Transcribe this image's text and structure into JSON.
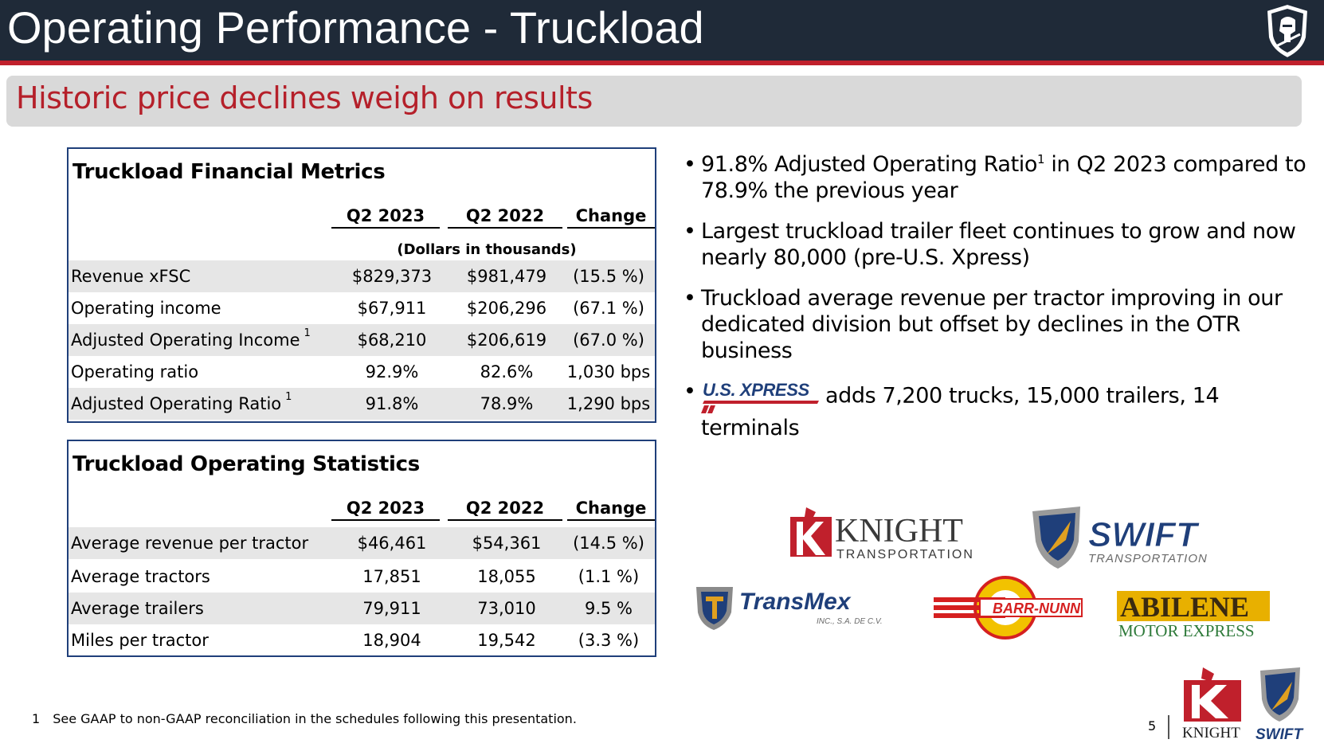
{
  "header": {
    "title": "Operating Performance - Truckload",
    "logo_icon": "knight-helmet-shield-icon"
  },
  "banner": {
    "subtitle": "Historic price declines weigh on results"
  },
  "financial_metrics": {
    "title": "Truckload Financial Metrics",
    "columns": [
      "Q2 2023",
      "Q2 2022",
      "Change"
    ],
    "units": "(Dollars in thousands)",
    "rows": [
      {
        "label": "Revenue xFSC",
        "footnote": "",
        "q2_2023": "$829,373",
        "q2_2022": "$981,479",
        "change": "(15.5 %)"
      },
      {
        "label": "Operating income",
        "footnote": "",
        "q2_2023": "$67,911",
        "q2_2022": "$206,296",
        "change": "(67.1 %)"
      },
      {
        "label": "Adjusted Operating Income",
        "footnote": "1",
        "q2_2023": "$68,210",
        "q2_2022": "$206,619",
        "change": "(67.0 %)"
      },
      {
        "label": "Operating ratio",
        "footnote": "",
        "q2_2023": "92.9%",
        "q2_2022": "82.6%",
        "change": "1,030 bps"
      },
      {
        "label": "Adjusted Operating Ratio",
        "footnote": "1",
        "q2_2023": "91.8%",
        "q2_2022": "78.9%",
        "change": "1,290 bps"
      }
    ]
  },
  "operating_statistics": {
    "title": "Truckload Operating Statistics",
    "columns": [
      "Q2 2023",
      "Q2 2022",
      "Change"
    ],
    "rows": [
      {
        "label": "Average revenue per tractor",
        "q2_2023": "$46,461",
        "q2_2022": "$54,361",
        "change": "(14.5 %)"
      },
      {
        "label": "Average tractors",
        "q2_2023": "17,851",
        "q2_2022": "18,055",
        "change": "(1.1 %)"
      },
      {
        "label": "Average trailers",
        "q2_2023": "79,911",
        "q2_2022": "73,010",
        "change": "9.5 %"
      },
      {
        "label": "Miles per tractor",
        "q2_2023": "18,904",
        "q2_2022": "19,542",
        "change": "(3.3 %)"
      }
    ]
  },
  "bullets": {
    "b1_pre": "91.8% Adjusted Operating Ratio",
    "b1_sup": "1",
    "b1_post": " in Q2 2023 compared to 78.9% the previous year",
    "b2": "Largest truckload trailer fleet continues to grow and now nearly 80,000 (pre-U.S. Xpress)",
    "b3": "Truckload average revenue per tractor improving in our dedicated division but offset by declines in the OTR business",
    "b4": "adds 7,200 trucks, 15,000 trailers, 14 terminals",
    "b4_logo_text": "U.S. XPRESS"
  },
  "logos": {
    "knight_name": "KNIGHT",
    "knight_sub": "TRANSPORTATION",
    "swift_name": "SWIFT",
    "swift_sub": "TRANSPORTATION",
    "transmex_name": "TransMex",
    "transmex_sub": "INC., S.A. DE C.V.",
    "barrnunn_name": "BARR-NUNN",
    "abilene_name": "ABILENE",
    "abilene_sub": "MOTOR EXPRESS",
    "corner_knight": "KNIGHT",
    "corner_swift": "SWIFT"
  },
  "colors": {
    "header_bg": "#1f2a38",
    "accent_red": "#c0202c",
    "subtitle_red": "#b5202a",
    "table_border": "#1f3f7a",
    "row_shade": "#e6e6e6",
    "banner_bg": "#d9d9d9"
  },
  "footer": {
    "footnote_num": "1",
    "footnote_text": "See GAAP to non-GAAP reconciliation in the schedules following this presentation.",
    "page_number": "5"
  }
}
